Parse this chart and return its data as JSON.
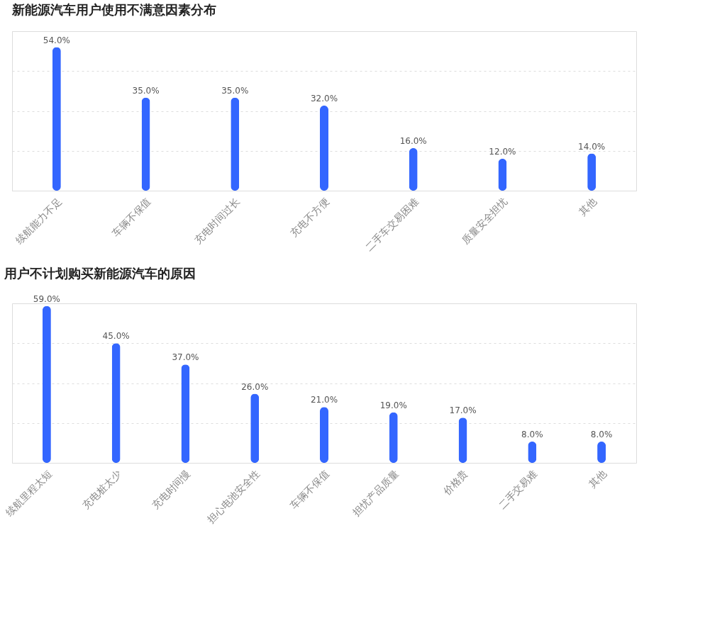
{
  "chart_data": [
    {
      "type": "bar",
      "title": "新能源汽车用户使用不满意因素分布",
      "categories": [
        "续航能力不足",
        "车辆不保值",
        "充电时间过长",
        "充电不方便",
        "二手车交易困难",
        "质量安全担忧",
        "其他"
      ],
      "values": [
        54,
        35,
        35,
        32,
        16,
        12,
        14
      ],
      "value_labels": [
        "54.0%",
        "35.0%",
        "35.0%",
        "32.0%",
        "16.0%",
        "12.0%",
        "14.0%"
      ],
      "color": "#3366ff",
      "ylim": [
        0,
        60
      ],
      "yticks": [
        {
          "value": 0,
          "label": null
        },
        {
          "value": 15,
          "label": null
        },
        {
          "value": 30,
          "label": null
        },
        {
          "value": 45,
          "label": null
        },
        {
          "value": 60,
          "label": null
        }
      ],
      "grid": "y",
      "tick_labels": "x"
    },
    {
      "type": "bar",
      "title": "用户不计划购买新能源汽车的原因",
      "categories": [
        "续航里程太短",
        "充电桩太少",
        "充电时间慢",
        "担心电池安全性",
        "车辆不保值",
        "担忧产品质量",
        "价格贵",
        "二手交易难",
        "其他"
      ],
      "values": [
        59,
        45,
        37,
        26,
        21,
        19,
        17,
        8,
        8
      ],
      "value_labels": [
        "59.0%",
        "45.0%",
        "37.0%",
        "26.0%",
        "21.0%",
        "19.0%",
        "17.0%",
        "8.0%",
        "8.0%"
      ],
      "color": "#3366ff",
      "ylim": [
        0,
        60
      ],
      "yticks": [
        {
          "value": 0,
          "label": null
        },
        {
          "value": 15,
          "label": null
        },
        {
          "value": 30,
          "label": null
        },
        {
          "value": 45,
          "label": null
        },
        {
          "value": 60,
          "label": null
        }
      ],
      "grid": "y",
      "tick_labels": "x"
    }
  ]
}
